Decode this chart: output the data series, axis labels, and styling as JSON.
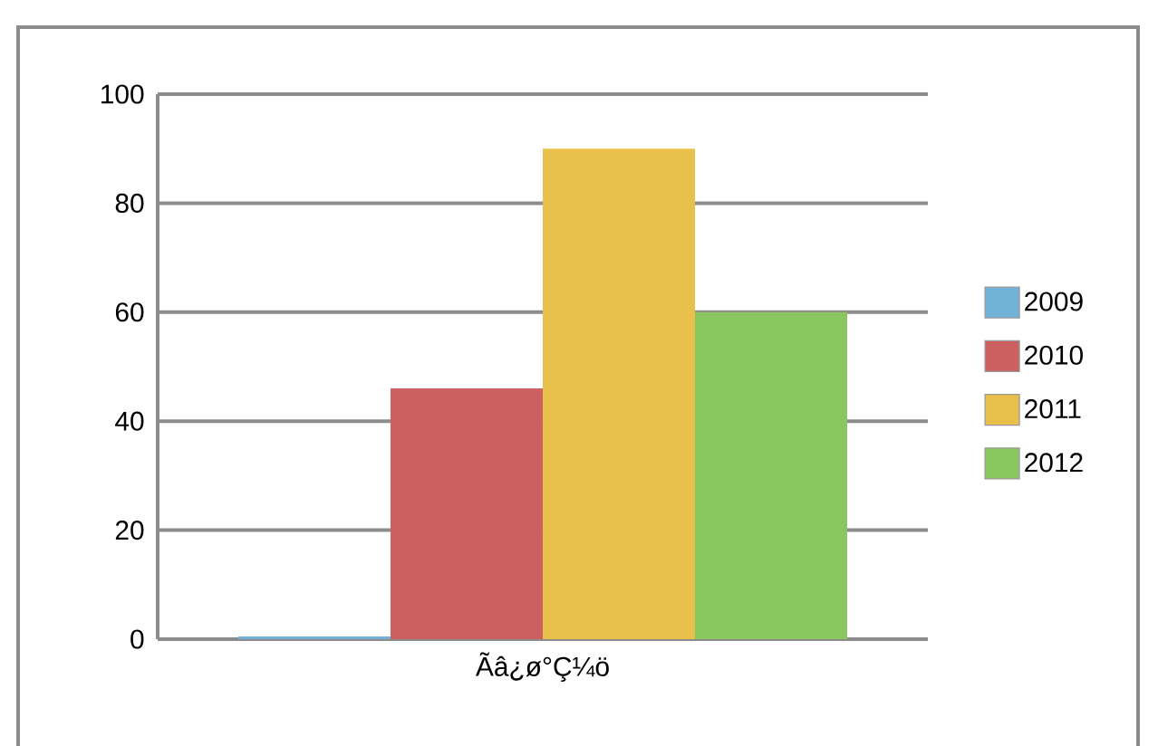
{
  "chart_data": {
    "type": "bar",
    "categories": [
      "Ãâ¿ø°Ç¼ö"
    ],
    "series": [
      {
        "name": "2009",
        "color": "#72b1d8",
        "values": [
          0.5
        ]
      },
      {
        "name": "2010",
        "color": "#cc6060",
        "values": [
          46
        ]
      },
      {
        "name": "2011",
        "color": "#e9c04c",
        "values": [
          90
        ]
      },
      {
        "name": "2012",
        "color": "#8ac65e",
        "values": [
          60
        ]
      }
    ],
    "ylim": [
      0,
      100
    ],
    "yticks": [
      0,
      20,
      40,
      60,
      80,
      100
    ],
    "grid": "y",
    "legend": "right"
  }
}
